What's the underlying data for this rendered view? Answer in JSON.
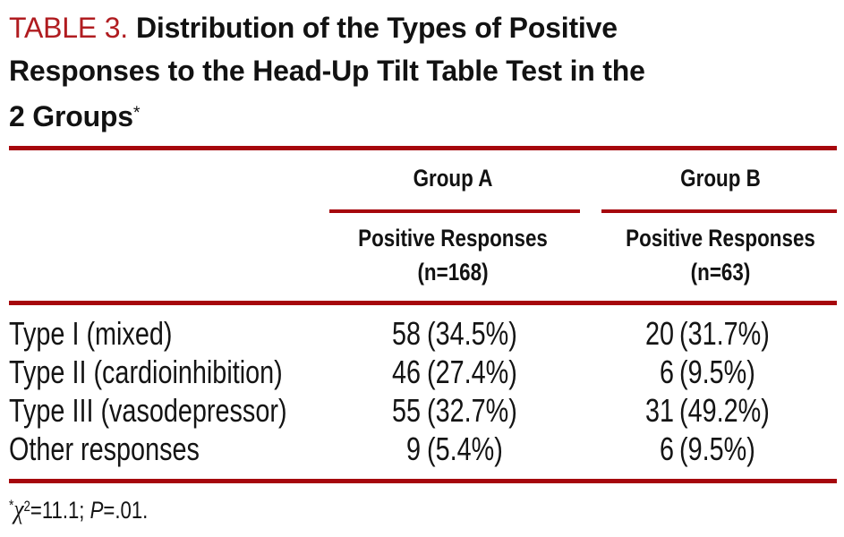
{
  "title": {
    "label": "TABLE 3.",
    "lines": [
      "Distribution of the Types of Positive",
      "Responses to the Head-Up Tilt Table Test in the",
      "2 Groups"
    ],
    "footnote_marker": "*"
  },
  "colors": {
    "rule_red": "#a6070d",
    "table_label_red": "#b01c20",
    "text": "#141414"
  },
  "table": {
    "groups": [
      {
        "name": "Group A",
        "subheader": "Positive Responses",
        "n_label": "(n=168)"
      },
      {
        "name": "Group B",
        "subheader": "Positive Responses",
        "n_label": "(n=63)"
      }
    ],
    "rows": [
      {
        "label": "Type I (mixed)",
        "a_count": "58",
        "a_pct": "(34.5%)",
        "b_count": "20",
        "b_pct": "(31.7%)"
      },
      {
        "label": "Type II (cardioinhibition)",
        "a_count": "46",
        "a_pct": "(27.4%)",
        "b_count": "6",
        "b_pct": "(9.5%)"
      },
      {
        "label": "Type III (vasodepressor)",
        "a_count": "55",
        "a_pct": "(32.7%)",
        "b_count": "31",
        "b_pct": "(49.2%)"
      },
      {
        "label": "Other responses",
        "a_count": "9",
        "a_pct": "(5.4%)",
        "b_count": "6",
        "b_pct": "(9.5%)"
      }
    ]
  },
  "footnote": {
    "marker": "*",
    "chi": "χ",
    "chi_exponent": "2",
    "stat": "=11.1;",
    "p_label": "P",
    "p_value": "=.01."
  }
}
